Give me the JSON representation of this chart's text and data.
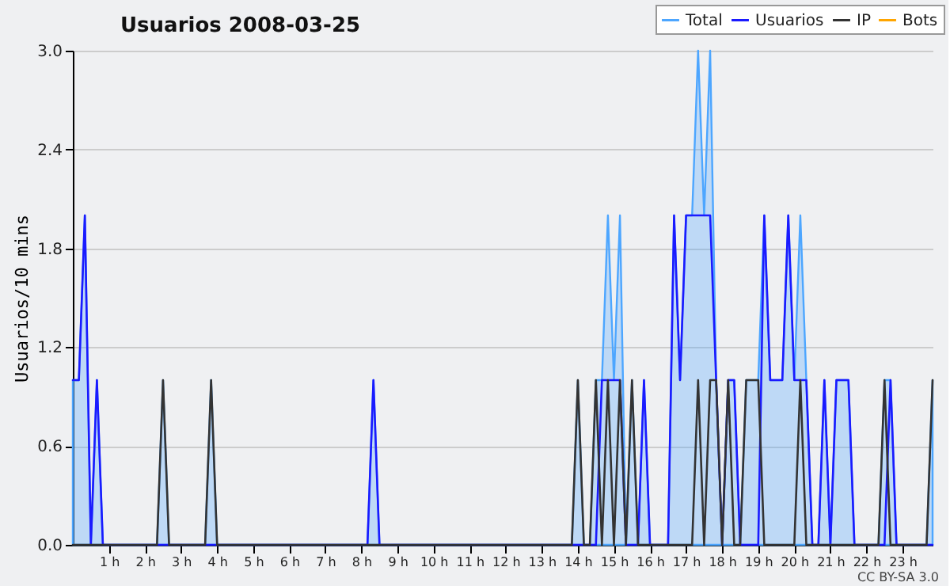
{
  "chart_data": {
    "type": "line",
    "title": "Usuarios  2008-03-25",
    "ylabel": "Usuarios/10 mins",
    "x": [
      0,
      0.167,
      0.333,
      0.5,
      0.667,
      0.833,
      1,
      1.167,
      1.333,
      1.5,
      1.667,
      1.833,
      2,
      2.167,
      2.333,
      2.5,
      2.667,
      2.833,
      3,
      3.167,
      3.333,
      3.5,
      3.667,
      3.833,
      4,
      4.167,
      4.333,
      4.5,
      4.667,
      4.833,
      5,
      5.167,
      5.333,
      5.5,
      5.667,
      5.833,
      6,
      6.167,
      6.333,
      6.5,
      6.667,
      6.833,
      7,
      7.167,
      7.333,
      7.5,
      7.667,
      7.833,
      8,
      8.167,
      8.333,
      8.5,
      8.667,
      8.833,
      9,
      9.167,
      9.333,
      9.5,
      9.667,
      9.833,
      10,
      10.167,
      10.333,
      10.5,
      10.667,
      10.833,
      11,
      11.167,
      11.333,
      11.5,
      11.667,
      11.833,
      12,
      12.167,
      12.333,
      12.5,
      12.667,
      12.833,
      13,
      13.167,
      13.333,
      13.5,
      13.667,
      13.833,
      14,
      14.167,
      14.333,
      14.5,
      14.667,
      14.833,
      15,
      15.167,
      15.333,
      15.5,
      15.667,
      15.833,
      16,
      16.167,
      16.333,
      16.5,
      16.667,
      16.833,
      17,
      17.167,
      17.333,
      17.5,
      17.667,
      17.833,
      18,
      18.167,
      18.333,
      18.5,
      18.667,
      18.833,
      19,
      19.167,
      19.333,
      19.5,
      19.667,
      19.833,
      20,
      20.167,
      20.333,
      20.5,
      20.667,
      20.833,
      21,
      21.167,
      21.333,
      21.5,
      21.667,
      21.833,
      22,
      22.167,
      22.333,
      22.5,
      22.667,
      22.833,
      23,
      23.167,
      23.333,
      23.5,
      23.667,
      23.833
    ],
    "series": [
      {
        "name": "Total",
        "color": "#4da6ff",
        "type": "area",
        "values": [
          1,
          1,
          2,
          0,
          1,
          0,
          0,
          0,
          0,
          0,
          0,
          0,
          0,
          0,
          0,
          1,
          0,
          0,
          0,
          0,
          0,
          0,
          0,
          1,
          0,
          0,
          0,
          0,
          0,
          0,
          0,
          0,
          0,
          0,
          0,
          0,
          0,
          0,
          0,
          0,
          0,
          0,
          0,
          0,
          0,
          0,
          0,
          0,
          0,
          0,
          1,
          0,
          0,
          0,
          0,
          0,
          0,
          0,
          0,
          0,
          0,
          0,
          0,
          0,
          0,
          0,
          0,
          0,
          0,
          0,
          0,
          0,
          0,
          0,
          0,
          0,
          0,
          0,
          0,
          0,
          0,
          0,
          0,
          0,
          1,
          0,
          0,
          1,
          1,
          2,
          1,
          2,
          0,
          1,
          0,
          1,
          0,
          0,
          0,
          0,
          2,
          1,
          2,
          2,
          3,
          2,
          3,
          1,
          0,
          1,
          1,
          0,
          1,
          1,
          1,
          2,
          1,
          1,
          1,
          2,
          1,
          2,
          1,
          0,
          0,
          1,
          0,
          1,
          1,
          1,
          0,
          0,
          0,
          0,
          0,
          1,
          1,
          0,
          0,
          0,
          0,
          0,
          0,
          1
        ]
      },
      {
        "name": "Usuarios",
        "color": "#1a1aff",
        "values": [
          1,
          1,
          2,
          0,
          1,
          0,
          0,
          0,
          0,
          0,
          0,
          0,
          0,
          0,
          0,
          0,
          0,
          0,
          0,
          0,
          0,
          0,
          0,
          0,
          0,
          0,
          0,
          0,
          0,
          0,
          0,
          0,
          0,
          0,
          0,
          0,
          0,
          0,
          0,
          0,
          0,
          0,
          0,
          0,
          0,
          0,
          0,
          0,
          0,
          0,
          1,
          0,
          0,
          0,
          0,
          0,
          0,
          0,
          0,
          0,
          0,
          0,
          0,
          0,
          0,
          0,
          0,
          0,
          0,
          0,
          0,
          0,
          0,
          0,
          0,
          0,
          0,
          0,
          0,
          0,
          0,
          0,
          0,
          0,
          0,
          0,
          0,
          0,
          1,
          1,
          1,
          1,
          0,
          0,
          0,
          1,
          0,
          0,
          0,
          0,
          2,
          1,
          2,
          2,
          2,
          2,
          2,
          1,
          0,
          1,
          1,
          0,
          0,
          0,
          0,
          2,
          1,
          1,
          1,
          2,
          1,
          1,
          1,
          0,
          0,
          1,
          0,
          1,
          1,
          1,
          0,
          0,
          0,
          0,
          0,
          0,
          1,
          0,
          0,
          0,
          0,
          0,
          0,
          0
        ]
      },
      {
        "name": "IP",
        "color": "#333333",
        "values": [
          0,
          0,
          0,
          0,
          0,
          0,
          0,
          0,
          0,
          0,
          0,
          0,
          0,
          0,
          0,
          1,
          0,
          0,
          0,
          0,
          0,
          0,
          0,
          1,
          0,
          0,
          0,
          0,
          0,
          0,
          0,
          0,
          0,
          0,
          0,
          0,
          0,
          0,
          0,
          0,
          0,
          0,
          0,
          0,
          0,
          0,
          0,
          0,
          0,
          0,
          0,
          0,
          0,
          0,
          0,
          0,
          0,
          0,
          0,
          0,
          0,
          0,
          0,
          0,
          0,
          0,
          0,
          0,
          0,
          0,
          0,
          0,
          0,
          0,
          0,
          0,
          0,
          0,
          0,
          0,
          0,
          0,
          0,
          0,
          1,
          0,
          0,
          1,
          0,
          1,
          0,
          1,
          0,
          1,
          0,
          0,
          0,
          0,
          0,
          0,
          0,
          0,
          0,
          0,
          1,
          0,
          1,
          1,
          0,
          1,
          0,
          0,
          1,
          1,
          1,
          0,
          0,
          0,
          0,
          0,
          0,
          1,
          0,
          0,
          0,
          0,
          0,
          0,
          0,
          0,
          0,
          0,
          0,
          0,
          0,
          1,
          0,
          0,
          0,
          0,
          0,
          0,
          0,
          1
        ]
      },
      {
        "name": "Bots",
        "color": "#ffa500",
        "values": [
          null,
          null,
          null,
          null,
          null,
          null,
          null,
          null,
          null,
          null,
          null,
          null,
          null,
          null,
          null,
          null,
          null,
          null,
          null,
          null,
          null,
          null,
          null,
          null,
          null,
          null,
          null,
          null,
          null,
          null,
          null,
          null,
          null,
          null,
          null,
          null,
          null,
          null,
          null,
          null,
          null,
          null,
          null,
          null,
          null,
          null,
          null,
          null,
          null,
          null,
          null,
          null,
          null,
          null,
          null,
          null,
          null,
          null,
          null,
          null,
          null,
          null,
          null,
          null,
          null,
          null,
          null,
          null,
          null,
          null,
          null,
          null,
          null,
          null,
          null,
          null,
          null,
          null,
          null,
          null,
          null,
          null,
          null,
          null,
          null,
          null,
          null,
          null,
          null,
          null,
          null,
          null,
          null,
          null,
          null,
          null,
          null,
          null,
          null,
          null,
          null,
          null,
          null,
          null,
          null,
          null,
          null,
          null,
          null,
          null,
          null,
          null,
          null,
          null,
          null,
          null,
          null,
          null,
          null,
          null,
          null,
          null,
          null,
          null,
          null,
          null,
          null,
          null,
          null,
          null,
          null,
          null,
          null,
          null,
          null,
          null,
          null,
          null,
          null,
          null,
          null,
          null,
          null,
          null
        ]
      }
    ],
    "xlim": [
      0,
      23.833
    ],
    "xticks": [
      {
        "value": 1,
        "label": "1 h"
      },
      {
        "value": 2,
        "label": "2 h"
      },
      {
        "value": 3,
        "label": "3 h"
      },
      {
        "value": 4,
        "label": "4 h"
      },
      {
        "value": 5,
        "label": "5 h"
      },
      {
        "value": 6,
        "label": "6 h"
      },
      {
        "value": 7,
        "label": "7 h"
      },
      {
        "value": 8,
        "label": "8 h"
      },
      {
        "value": 9,
        "label": "9 h"
      },
      {
        "value": 10,
        "label": "10 h"
      },
      {
        "value": 11,
        "label": "11 h"
      },
      {
        "value": 12,
        "label": "12 h"
      },
      {
        "value": 13,
        "label": "13 h"
      },
      {
        "value": 14,
        "label": "14 h"
      },
      {
        "value": 15,
        "label": "15 h"
      },
      {
        "value": 16,
        "label": "16 h"
      },
      {
        "value": 17,
        "label": "17 h"
      },
      {
        "value": 18,
        "label": "18 h"
      },
      {
        "value": 19,
        "label": "19 h"
      },
      {
        "value": 20,
        "label": "20 h"
      },
      {
        "value": 21,
        "label": "21 h"
      },
      {
        "value": 22,
        "label": "22 h"
      },
      {
        "value": 23,
        "label": "23 h"
      }
    ],
    "ylim": [
      0,
      3
    ],
    "yticks": [
      {
        "value": 0,
        "label": "0.0"
      },
      0.6,
      1.2,
      1.8,
      2.4,
      {
        "value": 3,
        "label": "3.0"
      }
    ],
    "grid": "y",
    "legend": "top right",
    "line_style": "solid",
    "annotations": [
      "CC BY-SA 3.0"
    ]
  }
}
